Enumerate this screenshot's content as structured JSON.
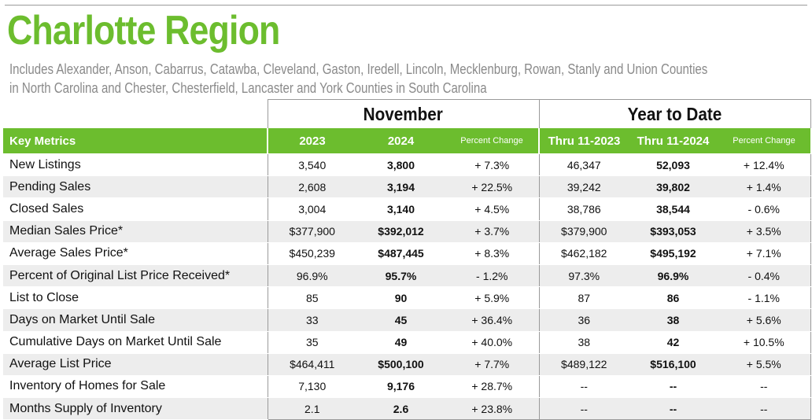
{
  "title": "Charlotte Region",
  "subtitle_line1": "Includes Alexander, Anson, Cabarrus, Catawba, Cleveland, Gaston, Iredell, Lincoln, Mecklenburg, Rowan, Stanly and Union Counties",
  "subtitle_line2": "in North Carolina and Chester, Chesterfield, Lancaster and York Counties in South Carolina",
  "colors": {
    "accent": "#6cbd2e",
    "row_alt": "#ededed",
    "subtitle": "#8a8a8a"
  },
  "groups": {
    "month": "November",
    "ytd": "Year to Date"
  },
  "header": {
    "key": "Key Metrics",
    "m_prev": "2023",
    "m_curr": "2024",
    "m_pct": "Percent Change",
    "y_prev": "Thru 11-2023",
    "y_curr": "Thru 11-2024",
    "y_pct": "Percent Change"
  },
  "rows": [
    {
      "name": "New Listings",
      "m_prev": "3,540",
      "m_curr": "3,800",
      "m_pct": "+ 7.3%",
      "y_prev": "46,347",
      "y_curr": "52,093",
      "y_pct": "+ 12.4%"
    },
    {
      "name": "Pending Sales",
      "m_prev": "2,608",
      "m_curr": "3,194",
      "m_pct": "+ 22.5%",
      "y_prev": "39,242",
      "y_curr": "39,802",
      "y_pct": "+ 1.4%"
    },
    {
      "name": "Closed Sales",
      "m_prev": "3,004",
      "m_curr": "3,140",
      "m_pct": "+ 4.5%",
      "y_prev": "38,786",
      "y_curr": "38,544",
      "y_pct": "- 0.6%"
    },
    {
      "name": "Median Sales Price*",
      "m_prev": "$377,900",
      "m_curr": "$392,012",
      "m_pct": "+ 3.7%",
      "y_prev": "$379,900",
      "y_curr": "$393,053",
      "y_pct": "+ 3.5%"
    },
    {
      "name": "Average Sales Price*",
      "m_prev": "$450,239",
      "m_curr": "$487,445",
      "m_pct": "+ 8.3%",
      "y_prev": "$462,182",
      "y_curr": "$495,192",
      "y_pct": "+ 7.1%"
    },
    {
      "name": "Percent of Original List Price Received*",
      "m_prev": "96.9%",
      "m_curr": "95.7%",
      "m_pct": "- 1.2%",
      "y_prev": "97.3%",
      "y_curr": "96.9%",
      "y_pct": "- 0.4%"
    },
    {
      "name": "List to Close",
      "m_prev": "85",
      "m_curr": "90",
      "m_pct": "+ 5.9%",
      "y_prev": "87",
      "y_curr": "86",
      "y_pct": "- 1.1%"
    },
    {
      "name": "Days on Market Until Sale",
      "m_prev": "33",
      "m_curr": "45",
      "m_pct": "+ 36.4%",
      "y_prev": "36",
      "y_curr": "38",
      "y_pct": "+ 5.6%"
    },
    {
      "name": "Cumulative Days on Market Until Sale",
      "m_prev": "35",
      "m_curr": "49",
      "m_pct": "+ 40.0%",
      "y_prev": "38",
      "y_curr": "42",
      "y_pct": "+ 10.5%"
    },
    {
      "name": "Average List Price",
      "m_prev": "$464,411",
      "m_curr": "$500,100",
      "m_pct": "+ 7.7%",
      "y_prev": "$489,122",
      "y_curr": "$516,100",
      "y_pct": "+ 5.5%"
    },
    {
      "name": "Inventory of Homes for Sale",
      "m_prev": "7,130",
      "m_curr": "9,176",
      "m_pct": "+ 28.7%",
      "y_prev": "--",
      "y_curr": "--",
      "y_pct": "--"
    },
    {
      "name": "Months Supply of Inventory",
      "m_prev": "2.1",
      "m_curr": "2.6",
      "m_pct": "+ 23.8%",
      "y_prev": "--",
      "y_curr": "--",
      "y_pct": "--"
    }
  ]
}
